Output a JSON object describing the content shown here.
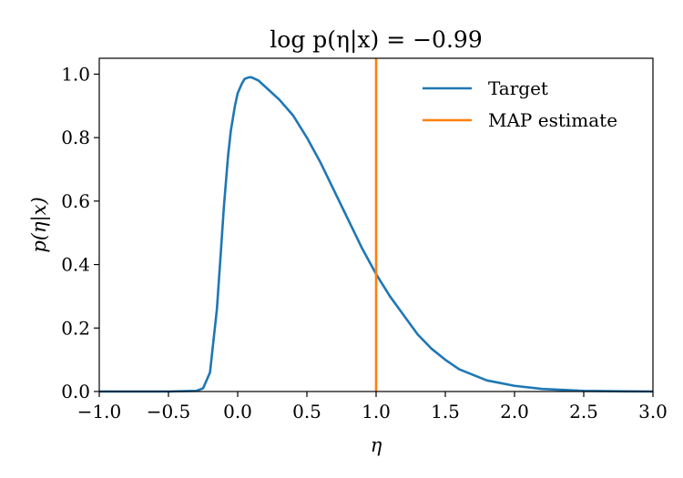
{
  "chart_data": {
    "type": "line",
    "title": "log p(η|x) = −0.99",
    "xlabel": "η",
    "ylabel": "p(η|x)",
    "xlim": [
      -1.0,
      3.0
    ],
    "ylim": [
      0.0,
      1.05
    ],
    "xticks": [
      -1.0,
      -0.5,
      0.0,
      0.5,
      1.0,
      1.5,
      2.0,
      2.5,
      3.0
    ],
    "xtick_labels": [
      "−1.0",
      "−0.5",
      "0.0",
      "0.5",
      "1.0",
      "1.5",
      "2.0",
      "2.5",
      "3.0"
    ],
    "yticks": [
      0.0,
      0.2,
      0.4,
      0.6,
      0.8,
      1.0
    ],
    "ytick_labels": [
      "0.0",
      "0.2",
      "0.4",
      "0.6",
      "0.8",
      "1.0"
    ],
    "grid": false,
    "legend_position": "top-right",
    "series": [
      {
        "name": "Target",
        "color": "#1f77b4",
        "x": [
          -1.0,
          -0.5,
          -0.3,
          -0.25,
          -0.2,
          -0.15,
          -0.12,
          -0.1,
          -0.07,
          -0.05,
          -0.02,
          0.0,
          0.03,
          0.05,
          0.08,
          0.1,
          0.15,
          0.2,
          0.3,
          0.4,
          0.5,
          0.6,
          0.7,
          0.8,
          0.9,
          1.0,
          1.1,
          1.2,
          1.3,
          1.4,
          1.5,
          1.6,
          1.8,
          2.0,
          2.2,
          2.5,
          2.8,
          3.0
        ],
        "y": [
          0.0,
          0.0,
          0.002,
          0.01,
          0.06,
          0.26,
          0.45,
          0.58,
          0.74,
          0.82,
          0.9,
          0.94,
          0.97,
          0.985,
          0.99,
          0.99,
          0.98,
          0.96,
          0.92,
          0.87,
          0.8,
          0.72,
          0.63,
          0.54,
          0.45,
          0.37,
          0.3,
          0.24,
          0.18,
          0.135,
          0.1,
          0.07,
          0.035,
          0.018,
          0.008,
          0.002,
          0.0005,
          0.0
        ]
      },
      {
        "name": "MAP estimate",
        "color": "#ff7f0e",
        "x": [
          1.0,
          1.0
        ],
        "y": [
          0.0,
          1.05
        ]
      }
    ]
  }
}
